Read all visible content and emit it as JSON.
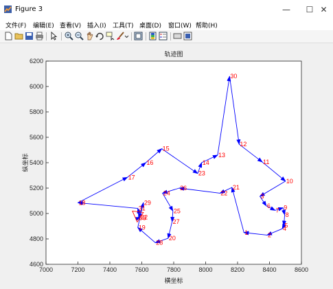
{
  "window": {
    "title": "Figure 3",
    "controls": [
      "—",
      "☐",
      "✕"
    ]
  },
  "menu": {
    "items": [
      "文件(F)",
      "编辑(E)",
      "查看(V)",
      "插入(I)",
      "工具(T)",
      "桌面(D)",
      "窗口(W)",
      "帮助(H)"
    ]
  },
  "toolbar": {
    "icons": [
      "new-figure-icon",
      "open-file-icon",
      "save-icon",
      "print-icon",
      "edit-plot-icon",
      "zoom-in-icon",
      "zoom-out-icon",
      "pan-icon",
      "rotate-3d-icon",
      "data-cursor-icon",
      "brush-icon",
      "link-plot-icon",
      "colorbar-icon",
      "legend-icon",
      "hide-plot-tools-icon",
      "show-plot-tools-icon"
    ]
  },
  "chart_data": {
    "type": "line",
    "title": "轨迹图",
    "xlabel": "横坐标",
    "ylabel": "纵坐标",
    "xlim": [
      7000,
      8600
    ],
    "ylim": [
      4600,
      6200
    ],
    "xticks": [
      7000,
      7200,
      7400,
      7600,
      7800,
      8000,
      8200,
      8400,
      8600
    ],
    "yticks": [
      4600,
      4800,
      5000,
      5200,
      5400,
      5600,
      5800,
      6000,
      6200
    ],
    "grid": false,
    "line_color": "#0000ff",
    "label_color": "#ff0000",
    "start_marker": "triangle",
    "points": [
      {
        "label": "33",
        "x": 7580,
        "y": 4965
      },
      {
        "label": "32",
        "x": 7590,
        "y": 4970
      },
      {
        "label": "31",
        "x": 7575,
        "y": 5040
      },
      {
        "label": "18",
        "x": 7200,
        "y": 5085
      },
      {
        "label": "17",
        "x": 7510,
        "y": 5285
      },
      {
        "label": "16",
        "x": 7625,
        "y": 5400
      },
      {
        "label": "15",
        "x": 7725,
        "y": 5510
      },
      {
        "label": "23",
        "x": 7950,
        "y": 5315
      },
      {
        "label": "14",
        "x": 7975,
        "y": 5400
      },
      {
        "label": "13",
        "x": 8075,
        "y": 5460
      },
      {
        "label": "30",
        "x": 8150,
        "y": 6080
      },
      {
        "label": "12",
        "x": 8210,
        "y": 5545
      },
      {
        "label": "11",
        "x": 8355,
        "y": 5405
      },
      {
        "label": "10",
        "x": 8500,
        "y": 5255
      },
      {
        "label": "3",
        "x": 8340,
        "y": 5135
      },
      {
        "label": "6",
        "x": 8380,
        "y": 5060
      },
      {
        "label": "7",
        "x": 8435,
        "y": 5025
      },
      {
        "label": "9",
        "x": 8485,
        "y": 5045
      },
      {
        "label": "8",
        "x": 8495,
        "y": 4990
      },
      {
        "label": "5",
        "x": 8490,
        "y": 4905
      },
      {
        "label": "4",
        "x": 8480,
        "y": 4880
      },
      {
        "label": "2",
        "x": 8385,
        "y": 4830
      },
      {
        "label": "1",
        "x": 8240,
        "y": 4850
      },
      {
        "label": "21",
        "x": 8165,
        "y": 5205
      },
      {
        "label": "22",
        "x": 8090,
        "y": 5160
      },
      {
        "label": "26",
        "x": 7835,
        "y": 5200
      },
      {
        "label": "24",
        "x": 7730,
        "y": 5160
      },
      {
        "label": "25",
        "x": 7795,
        "y": 5020
      },
      {
        "label": "27",
        "x": 7790,
        "y": 4935
      },
      {
        "label": "20",
        "x": 7765,
        "y": 4805
      },
      {
        "label": "28",
        "x": 7685,
        "y": 4770
      },
      {
        "label": "19",
        "x": 7575,
        "y": 4890
      },
      {
        "label": "29",
        "x": 7610,
        "y": 5085
      },
      {
        "label": "33",
        "x": 7580,
        "y": 4965
      }
    ]
  }
}
